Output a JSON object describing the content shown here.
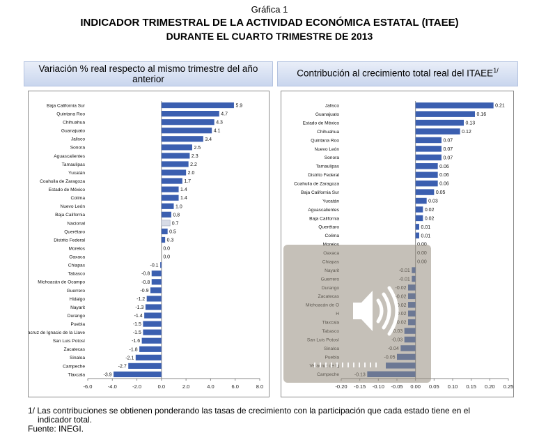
{
  "header": {
    "title1": "Gráfica 1",
    "title2": "INDICADOR TRIMESTRAL DE LA ACTIVIDAD ECONÓMICA ESTATAL (ITAEE)",
    "title3": "DURANTE EL CUARTO TRIMESTRE DE 2013"
  },
  "footer": {
    "note_line1": "1/ Las contribuciones se obtienen ponderando las tasas de crecimiento con la participación que cada estado tiene en el",
    "note_line2": "indicador total.",
    "source": "Fuente: INEGI."
  },
  "overlay": {
    "icon": "speaker-icon"
  },
  "colors": {
    "bar": "#3b5fb0",
    "highlight": "#d7dbe6"
  },
  "chart_data": [
    {
      "type": "bar",
      "orientation": "horizontal",
      "title": "Variación % real respecto al mismo trimestre del año anterior",
      "xlim": [
        -6.0,
        8.0
      ],
      "xticks": [
        "-6.0",
        "-4.0",
        "-2.0",
        "0.0",
        "2.0",
        "4.0",
        "6.0",
        "8.0"
      ],
      "categories": [
        "Baja California Sur",
        "Quintana Roo",
        "Chihuahua",
        "Guanajuato",
        "Jalisco",
        "Sonora",
        "Aguascalientes",
        "Tamaulipas",
        "Yucatán",
        "Coahuila de Zaragoza",
        "Estado de México",
        "Colima",
        "Nuevo León",
        "Baja California",
        "Nacional",
        "Querétaro",
        "Distrito Federal",
        "Morelos",
        "Oaxaca",
        "Chiapas",
        "Tabasco",
        "Michoacán de Ocampo",
        "Guerrero",
        "Hidalgo",
        "Nayarit",
        "Durango",
        "Puebla",
        "Veracruz de Ignacio de la Llave",
        "San Luis Potosí",
        "Zacatecas",
        "Sinaloa",
        "Campeche",
        "Tlaxcala"
      ],
      "values": [
        5.9,
        4.7,
        4.3,
        4.1,
        3.4,
        2.5,
        2.3,
        2.2,
        2.0,
        1.7,
        1.4,
        1.4,
        1.0,
        0.8,
        0.7,
        0.5,
        0.3,
        0.0,
        0.0,
        -0.1,
        -0.8,
        -0.8,
        -0.9,
        -1.2,
        -1.3,
        -1.4,
        -1.5,
        -1.5,
        -1.6,
        -1.8,
        -2.1,
        -2.7,
        -3.9
      ],
      "labels": [
        "5.9",
        "4.7",
        "4.3",
        "4.1",
        "3.4",
        "2.5",
        "2.3",
        "2.2",
        "2.0",
        "1.7",
        "1.4",
        "1.4",
        "1.0",
        "0.8",
        "0.7",
        "0.5",
        "0.3",
        "0.0",
        "0.0",
        "-0.1",
        "-0.8",
        "-0.8",
        "-0.9",
        "-1.2",
        "-1.3",
        "-1.4",
        "-1.5",
        "-1.5",
        "-1.6",
        "-1.8",
        "-2.1",
        "-2.7",
        "-3.9"
      ],
      "highlight": "Nacional"
    },
    {
      "type": "bar",
      "orientation": "horizontal",
      "title": "Contribución al crecimiento total real del ITAEE",
      "title_sup": "1/",
      "xlim": [
        -0.2,
        0.25
      ],
      "xticks": [
        "-0.20",
        "-0.15",
        "-0.10",
        "-0.05",
        "0.00",
        "0.05",
        "0.10",
        "0.15",
        "0.20",
        "0.25"
      ],
      "categories": [
        "Jalisco",
        "Guanajuato",
        "Estado de México",
        "Chihuahua",
        "Quintana Roo",
        "Nuevo León",
        "Sonora",
        "Tamaulipas",
        "Distrito Federal",
        "Coahuila de Zaragoza",
        "Baja California Sur",
        "Yucatán",
        "Aguascalientes",
        "Baja California",
        "Querétaro",
        "Colima",
        "Morelos",
        "Oaxaca",
        "Chiapas",
        "Nayarit",
        "Guerrero",
        "Durango",
        "Zacatecas",
        "Michoacán de Ocampo",
        "Hidalgo",
        "Tlaxcala",
        "Tabasco",
        "San Luis Potosí",
        "Sinaloa",
        "Puebla",
        "Veracruz de Ignacio de la Llave",
        "Campeche"
      ],
      "display_categories": [
        "Jalisco",
        "Guanajuato",
        "Estado de México",
        "Chihuahua",
        "Quintana Roo",
        "Nuevo León",
        "Sonora",
        "Tamaulipas",
        "Distrito Federal",
        "Coahuila de Zaragoza",
        "Baja California Sur",
        "Yucatán",
        "Aguascalientes",
        "Baja California",
        "Querétaro",
        "Colima",
        "Morelos",
        "Oaxaca",
        "Chiapas",
        "Nayarit",
        "Guerrero",
        "Durango",
        "Zacatecas",
        "Michoacán de O",
        "H",
        "Tlaxcala",
        "Tabasco",
        "San Luis Potosí",
        "Sinaloa",
        "Puebla",
        "Veracruz de Ig",
        "Campeche"
      ],
      "values": [
        0.21,
        0.16,
        0.13,
        0.12,
        0.07,
        0.07,
        0.07,
        0.06,
        0.06,
        0.06,
        0.05,
        0.03,
        0.02,
        0.02,
        0.01,
        0.01,
        0.0,
        0.0,
        0.0,
        -0.01,
        -0.01,
        -0.02,
        -0.02,
        -0.02,
        -0.02,
        -0.02,
        -0.03,
        -0.03,
        -0.04,
        -0.05,
        -0.08,
        -0.13
      ],
      "labels": [
        "0.21",
        "0.16",
        "0.13",
        "0.12",
        "0.07",
        "0.07",
        "0.07",
        "0.06",
        "0.06",
        "0.06",
        "0.05",
        "0.03",
        "0.02",
        "0.02",
        "0.01",
        "0.01",
        "0.00",
        "0.00",
        "0.00",
        "-0.01",
        "-0.01",
        "-0.02",
        "-0.02",
        "-0.02",
        "-0.02",
        "-0.02",
        "-0.03",
        "-0.03",
        "-0.04",
        "-0.05",
        "",
        "-0.13"
      ]
    }
  ]
}
